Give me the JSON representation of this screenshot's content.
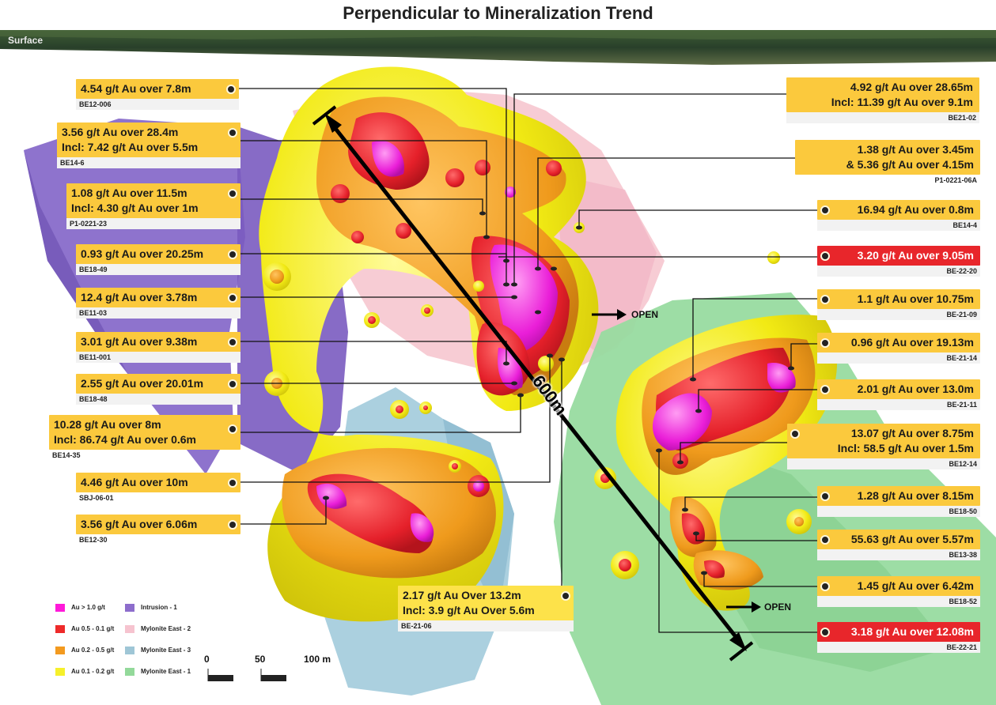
{
  "title": "Perpendicular to Mineralization Trend",
  "surface_label": "Surface",
  "distance_label": "600m",
  "open_label": "OPEN",
  "labels_left": [
    {
      "lines": [
        "4.54 g/t Au over 7.8m"
      ],
      "hole": "BE12-006"
    },
    {
      "lines": [
        "3.56 g/t Au over 28.4m",
        "Incl: 7.42 g/t Au over 5.5m"
      ],
      "hole": "BE14-6"
    },
    {
      "lines": [
        "1.08 g/t Au over 11.5m",
        "Incl: 4.30 g/t Au over 1m"
      ],
      "hole": "P1-0221-23"
    },
    {
      "lines": [
        "0.93 g/t Au over 20.25m"
      ],
      "hole": "BE18-49"
    },
    {
      "lines": [
        "12.4 g/t Au over 3.78m"
      ],
      "hole": "BE11-03"
    },
    {
      "lines": [
        "3.01 g/t Au over 9.38m"
      ],
      "hole": "BE11-001"
    },
    {
      "lines": [
        "2.55 g/t Au over 20.01m"
      ],
      "hole": "BE18-48"
    },
    {
      "lines": [
        "10.28 g/t Au over 8m",
        "Incl: 86.74 g/t Au over 0.6m"
      ],
      "hole": "BE14-35"
    },
    {
      "lines": [
        "4.46 g/t Au over 10m"
      ],
      "hole": "SBJ-06-01"
    },
    {
      "lines": [
        "3.56 g/t Au over 6.06m"
      ],
      "hole": "BE12-30"
    }
  ],
  "labels_right": [
    {
      "lines": [
        "4.92 g/t Au over 28.65m",
        "Incl: 11.39 g/t Au over 9.1m"
      ],
      "hole": "BE21-02"
    },
    {
      "lines": [
        "1.38 g/t Au over 3.45m",
        "& 5.36 g/t Au over 4.15m"
      ],
      "hole": "P1-0221-06A"
    },
    {
      "lines": [
        "16.94 g/t Au over 0.8m"
      ],
      "hole": "BE14-4"
    },
    {
      "lines": [
        "3.20 g/t Au over 9.05m"
      ],
      "hole": "BE-22-20",
      "highlight": true
    },
    {
      "lines": [
        "1.1 g/t Au over 10.75m"
      ],
      "hole": "BE-21-09"
    },
    {
      "lines": [
        "0.96 g/t Au over 19.13m"
      ],
      "hole": "BE-21-14"
    },
    {
      "lines": [
        "2.01 g/t Au over 13.0m"
      ],
      "hole": "BE-21-11"
    },
    {
      "lines": [
        "13.07 g/t Au over 8.75m",
        "Incl: 58.5 g/t Au over 1.5m"
      ],
      "hole": "BE12-14"
    },
    {
      "lines": [
        "1.28 g/t Au over 8.15m"
      ],
      "hole": "BE18-50"
    },
    {
      "lines": [
        "55.63 g/t Au over 5.57m"
      ],
      "hole": "BE13-38"
    },
    {
      "lines": [
        "1.45 g/t Au over 6.42m"
      ],
      "hole": "BE18-52"
    },
    {
      "lines": [
        "3.18 g/t Au over 12.08m"
      ],
      "hole": "BE-22-21",
      "highlight": true
    }
  ],
  "label_center": {
    "lines": [
      "2.17 g/t Au Over 13.2m",
      "Incl: 3.9 g/t Au Over 5.6m"
    ],
    "hole": "BE-21-06"
  },
  "legend": [
    {
      "label": "Au > 1.0 g/t",
      "color": "#ff1ad9"
    },
    {
      "label": "Au 0.5 - 0.1 g/t",
      "color": "#ee2a2a"
    },
    {
      "label": "Au 0.2 - 0.5 g/t",
      "color": "#f39a1f"
    },
    {
      "label": "Au 0.1 - 0.2 g/t",
      "color": "#f6f02b"
    },
    {
      "label": "Intrusion - 1",
      "color": "#8d6dcc"
    },
    {
      "label": "Mylonite East - 2",
      "color": "#f6c3cf"
    },
    {
      "label": "Mylonite East - 3",
      "color": "#9fc6d6"
    },
    {
      "label": "Mylonite East - 1",
      "color": "#93d99a"
    }
  ],
  "scale": {
    "ticks": [
      "0",
      "50",
      "100 m"
    ]
  },
  "colors": {
    "label_fill": "#fbc93d",
    "label_highlight": "#e8262b",
    "yellow_shell": "#f5ee1e",
    "orange_shell": "#f0a020",
    "red_shell": "#e8262b",
    "magenta_core": "#ee22dd",
    "intrusion": "#8467c9",
    "mylonite_pink": "#f7c9d2",
    "mylonite_blue": "#a6cddd",
    "mylonite_green": "#98dba0"
  }
}
